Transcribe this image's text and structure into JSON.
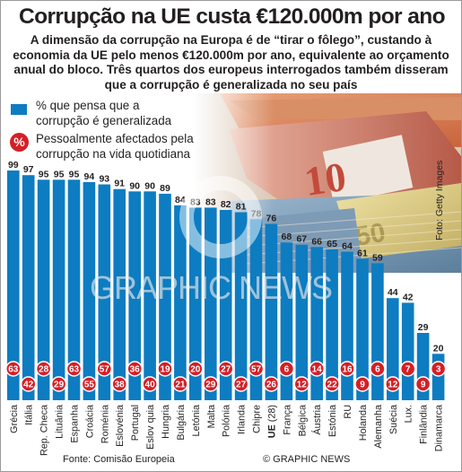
{
  "header": {
    "title": "Corrupção na UE custa €120.000m por ano",
    "subtitle": "A dimensão da corrupção na Europa é de “tirar o fôlego”, custando à economia da UE pelo menos €120.000m por ano, equivalente ao orçamento anual do bloco. Três quartos dos europeus interrogados também disseram que a corrupção é generalizada no seu país"
  },
  "legend": {
    "blue_label": "% que pensa que a corrupção é generalizada",
    "red_symbol": "%",
    "red_label": "Pessoalmente afectados pela corrupção na vida quotidiana"
  },
  "photo_credit": "Foto: Getty Images",
  "watermark": "GRAPHIC NEWS",
  "footer": {
    "source": "Fonte: Comisão Europeia",
    "credit": "© GRAPHIC NEWS"
  },
  "colors": {
    "bar": "#0d7cc1",
    "badge": "#d51f26"
  },
  "chart_data": {
    "type": "bar",
    "ylim": [
      0,
      100
    ],
    "categories": [
      "Grécia",
      "Itália",
      "Rep. Checa",
      "Lituânia",
      "Espanha",
      "Croácia",
      "Roménia",
      "Eslovénia",
      "Portugal",
      "Eslov quia",
      "Hungria",
      "Bulgária",
      "Letónia",
      "Malta",
      "Polónia",
      "Irlanda",
      "Chipre",
      "UE (28)",
      "França",
      "Bélgica",
      "Áustria",
      "Estónia",
      "RU",
      "Holanda",
      "Alemanha",
      "Suécia",
      "Lux.",
      "Finlândia",
      "Dinamarca"
    ],
    "highlight": "UE",
    "series": [
      {
        "name": "% que pensa que a corrupção é generalizada",
        "values": [
          99,
          97,
          95,
          95,
          95,
          94,
          93,
          91,
          90,
          90,
          89,
          84,
          83,
          83,
          82,
          81,
          78,
          76,
          68,
          67,
          66,
          65,
          64,
          61,
          59,
          44,
          42,
          29,
          20
        ]
      },
      {
        "name": "Pessoalmente afectados pela corrupção na vida quotidiana",
        "values": [
          63,
          42,
          28,
          29,
          63,
          55,
          57,
          38,
          36,
          40,
          19,
          21,
          20,
          29,
          27,
          27,
          57,
          26,
          6,
          12,
          14,
          22,
          16,
          9,
          6,
          12,
          7,
          9,
          3
        ]
      }
    ]
  }
}
